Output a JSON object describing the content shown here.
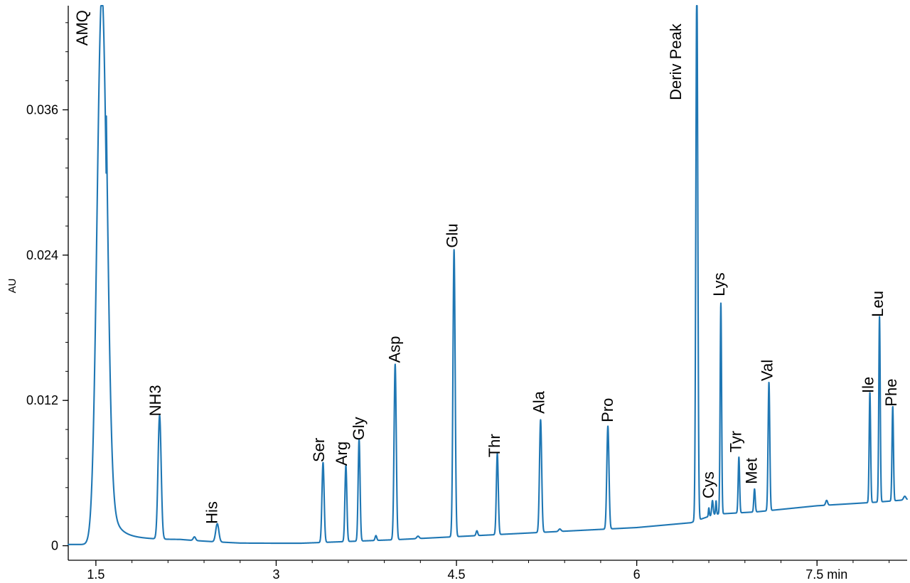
{
  "chart_data": {
    "type": "line",
    "title": "",
    "xlabel": "",
    "ylabel": "AU",
    "x_unit_label": "7.5 min",
    "xlim": [
      1.27,
      8.25
    ],
    "ylim": [
      -0.0012,
      0.0446
    ],
    "x_ticks": [
      {
        "value": 1.5,
        "label": "1.5"
      },
      {
        "value": 3,
        "label": "3"
      },
      {
        "value": 4.5,
        "label": "4.5"
      },
      {
        "value": 6,
        "label": "6"
      },
      {
        "value": 7.5,
        "label": "7.5 min"
      }
    ],
    "y_ticks": [
      {
        "value": 0,
        "label": "0"
      },
      {
        "value": 0.012,
        "label": "0.012"
      },
      {
        "value": 0.024,
        "label": "0.024"
      },
      {
        "value": 0.036,
        "label": "0.036"
      }
    ],
    "grid": false,
    "legend": "none",
    "series": [
      {
        "color": "#1f77b4",
        "baseline": [
          {
            "x": 1.27,
            "y": 0.0001
          },
          {
            "x": 1.46,
            "y": 0.0001
          },
          {
            "x": 2.2,
            "y": 0.0004
          },
          {
            "x": 2.7,
            "y": 0.0002
          },
          {
            "x": 3.2,
            "y": 0.0002
          },
          {
            "x": 4.0,
            "y": 0.0005
          },
          {
            "x": 5.0,
            "y": 0.001
          },
          {
            "x": 6.0,
            "y": 0.0015
          },
          {
            "x": 6.45,
            "y": 0.0019
          },
          {
            "x": 6.65,
            "y": 0.0026
          },
          {
            "x": 7.0,
            "y": 0.0028
          },
          {
            "x": 7.5,
            "y": 0.0033
          },
          {
            "x": 8.0,
            "y": 0.0036
          },
          {
            "x": 8.25,
            "y": 0.0038
          }
        ],
        "peaks": [
          {
            "name": "AMQ",
            "rt": 1.55,
            "height": 0.0455,
            "width": 0.04,
            "tail": 0.0045
          },
          {
            "name": "NH3",
            "rt": 2.03,
            "height": 0.0102,
            "width": 0.013
          },
          {
            "name": "His",
            "rt": 2.51,
            "height": 0.0015,
            "width": 0.013
          },
          {
            "name": "Ser",
            "rt": 3.39,
            "height": 0.0066,
            "width": 0.009
          },
          {
            "name": "Arg",
            "rt": 3.58,
            "height": 0.0063,
            "width": 0.008
          },
          {
            "name": "Gly",
            "rt": 3.69,
            "height": 0.0084,
            "width": 0.008
          },
          {
            "name": "Asp",
            "rt": 3.99,
            "height": 0.0145,
            "width": 0.009
          },
          {
            "name": "Glu",
            "rt": 4.48,
            "height": 0.0237,
            "width": 0.009
          },
          {
            "name": "Thr",
            "rt": 4.84,
            "height": 0.0067,
            "width": 0.008
          },
          {
            "name": "Ala",
            "rt": 5.2,
            "height": 0.0093,
            "width": 0.009
          },
          {
            "name": "Pro",
            "rt": 5.76,
            "height": 0.0085,
            "width": 0.009
          },
          {
            "name": "Deriv Peak",
            "rt": 6.5,
            "height": 0.0445,
            "width": 0.008
          },
          {
            "name": "Cys",
            "rt": 6.63,
            "height": 0.0012,
            "width": 0.006
          },
          {
            "name": "Lys",
            "rt": 6.7,
            "height": 0.0174,
            "width": 0.006
          },
          {
            "name": "Tyr",
            "rt": 6.85,
            "height": 0.0046,
            "width": 0.006
          },
          {
            "name": "Met",
            "rt": 6.98,
            "height": 0.0019,
            "width": 0.006
          },
          {
            "name": "Val",
            "rt": 7.1,
            "height": 0.0106,
            "width": 0.007
          },
          {
            "name": "Ile",
            "rt": 7.94,
            "height": 0.0091,
            "width": 0.006
          },
          {
            "name": "Leu",
            "rt": 8.02,
            "height": 0.0153,
            "width": 0.006
          },
          {
            "name": "Phe",
            "rt": 8.13,
            "height": 0.0078,
            "width": 0.006
          }
        ],
        "small_features": [
          {
            "rt": 2.32,
            "height": 0.0003,
            "width": 0.01
          },
          {
            "rt": 3.83,
            "height": 0.0004,
            "width": 0.007
          },
          {
            "rt": 4.18,
            "height": 0.0002,
            "width": 0.01
          },
          {
            "rt": 4.67,
            "height": 0.0004,
            "width": 0.007
          },
          {
            "rt": 5.36,
            "height": 0.0002,
            "width": 0.01
          },
          {
            "rt": 6.6,
            "height": 0.0007,
            "width": 0.004
          },
          {
            "rt": 6.66,
            "height": 0.0011,
            "width": 0.004
          },
          {
            "rt": 7.58,
            "height": 0.0004,
            "width": 0.008
          },
          {
            "rt": 8.23,
            "height": 0.0003,
            "width": 0.01
          }
        ]
      }
    ],
    "annotations": [
      {
        "text": "AMQ",
        "x": 1.43,
        "y": 0.0413
      },
      {
        "text": "NH3",
        "x": 2.04,
        "y": 0.0107
      },
      {
        "text": "His",
        "x": 2.51,
        "y": 0.0018
      },
      {
        "text": "Ser",
        "x": 3.4,
        "y": 0.0069
      },
      {
        "text": "Arg",
        "x": 3.59,
        "y": 0.0066
      },
      {
        "text": "Gly",
        "x": 3.73,
        "y": 0.0087
      },
      {
        "text": "Asp",
        "x": 4.03,
        "y": 0.0151
      },
      {
        "text": "Glu",
        "x": 4.51,
        "y": 0.0246
      },
      {
        "text": "Thr",
        "x": 4.86,
        "y": 0.0073
      },
      {
        "text": "Ala",
        "x": 5.23,
        "y": 0.0109
      },
      {
        "text": "Pro",
        "x": 5.8,
        "y": 0.0102
      },
      {
        "text": "Deriv Peak",
        "x": 6.37,
        "y": 0.0368
      },
      {
        "text": "Cys",
        "x": 6.64,
        "y": 0.0039
      },
      {
        "text": "Lys",
        "x": 6.73,
        "y": 0.0206
      },
      {
        "text": "Tyr",
        "x": 6.87,
        "y": 0.0077
      },
      {
        "text": "Met",
        "x": 7.0,
        "y": 0.0051
      },
      {
        "text": "Val",
        "x": 7.13,
        "y": 0.0136
      },
      {
        "text": "Ile",
        "x": 7.97,
        "y": 0.0126
      },
      {
        "text": "Leu",
        "x": 8.05,
        "y": 0.0189
      },
      {
        "text": "Phe",
        "x": 8.16,
        "y": 0.0115
      }
    ]
  }
}
